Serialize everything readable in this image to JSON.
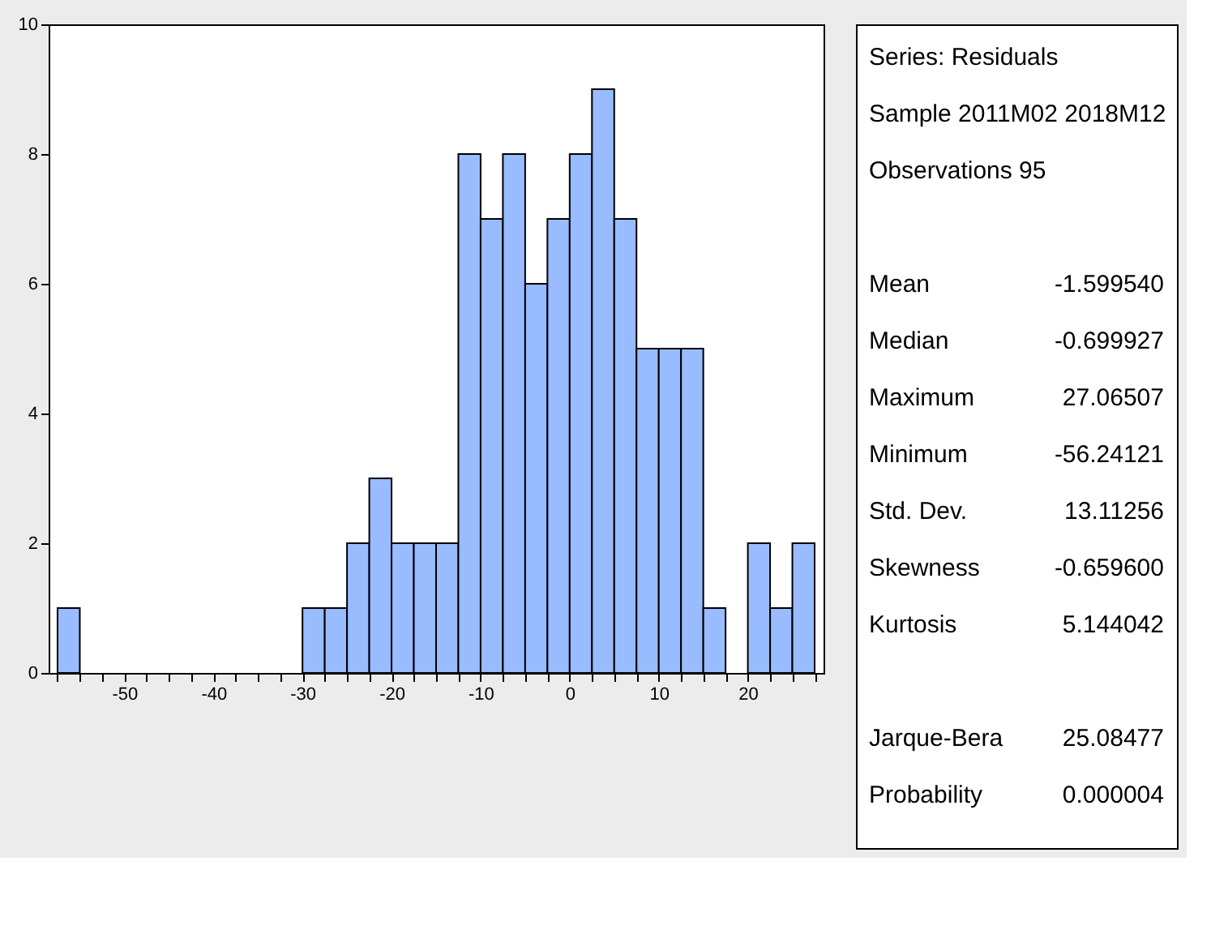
{
  "chart_data": {
    "type": "histogram",
    "bins": [
      -57.5,
      -55,
      -52.5,
      -50,
      -47.5,
      -45,
      -42.5,
      -40,
      -37.5,
      -35,
      -32.5,
      -30,
      -27.5,
      -25,
      -22.5,
      -20,
      -17.5,
      -15,
      -12.5,
      -10,
      -7.5,
      -5,
      -2.5,
      0,
      2.5,
      5,
      7.5,
      10,
      12.5,
      15,
      17.5,
      20,
      22.5,
      25,
      27.5
    ],
    "values": [
      1,
      0,
      0,
      0,
      0,
      0,
      0,
      0,
      0,
      0,
      0,
      1,
      1,
      2,
      3,
      2,
      2,
      2,
      8,
      7,
      8,
      6,
      7,
      8,
      9,
      7,
      5,
      5,
      5,
      1,
      0,
      2,
      1,
      2
    ],
    "color": "#99bbff",
    "xlim": [
      -58.5,
      28.5
    ],
    "xticks": [
      {
        "value": -57.5,
        "label": null
      },
      {
        "value": -55,
        "label": null
      },
      {
        "value": -52.5,
        "label": null
      },
      -50,
      {
        "value": -47.5,
        "label": null
      },
      {
        "value": -45,
        "label": null
      },
      {
        "value": -42.5,
        "label": null
      },
      -40,
      {
        "value": -37.5,
        "label": null
      },
      {
        "value": -35,
        "label": null
      },
      {
        "value": -32.5,
        "label": null
      },
      -30,
      {
        "value": -27.5,
        "label": null
      },
      {
        "value": -25,
        "label": null
      },
      {
        "value": -22.5,
        "label": null
      },
      -20,
      {
        "value": -17.5,
        "label": null
      },
      {
        "value": -15,
        "label": null
      },
      {
        "value": -12.5,
        "label": null
      },
      -10,
      {
        "value": -7.5,
        "label": null
      },
      {
        "value": -5,
        "label": null
      },
      {
        "value": -2.5,
        "label": null
      },
      0,
      {
        "value": 2.5,
        "label": null
      },
      {
        "value": 5,
        "label": null
      },
      {
        "value": 7.5,
        "label": null
      },
      10,
      {
        "value": 12.5,
        "label": null
      },
      {
        "value": 15,
        "label": null
      },
      {
        "value": 17.5,
        "label": null
      },
      20,
      {
        "value": 22.5,
        "label": null
      },
      {
        "value": 25,
        "label": null
      },
      {
        "value": 27.5,
        "label": null
      }
    ],
    "ylim": [
      0,
      10
    ],
    "yticks": [
      0,
      2,
      4,
      6,
      8,
      10
    ],
    "grid": false,
    "annotations": [
      "Series: Residuals",
      "Sample 2011M02 2018M12",
      "Observations 95",
      "Mean",
      "-1.599540",
      "Median",
      "-0.699927",
      "Maximum",
      "27.06507",
      "Minimum",
      "-56.24121",
      "Std. Dev.",
      "13.11256",
      "Skewness",
      "-0.659600",
      "Kurtosis",
      "5.144042",
      "Jarque-Bera",
      "25.08477",
      "Probability",
      "0.000004"
    ]
  }
}
